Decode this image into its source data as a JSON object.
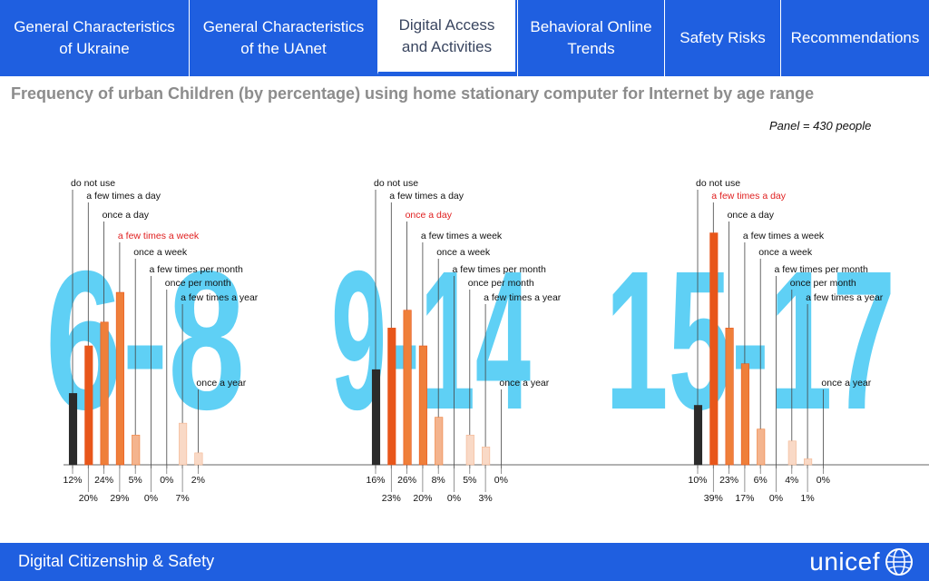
{
  "nav": {
    "tabs": [
      {
        "label_line1": "General Characteristics",
        "label_line2": "of Ukraine",
        "active": false
      },
      {
        "label_line1": "General Characteristics",
        "label_line2": "of the UAnet",
        "active": false
      },
      {
        "label_line1": "Digital Access",
        "label_line2": "and Activities",
        "active": true
      },
      {
        "label_line1": "Behavioral Online",
        "label_line2": "Trends",
        "active": false
      },
      {
        "label_line1": "Safety Risks",
        "label_line2": "",
        "active": false
      },
      {
        "label_line1": "Recommendations",
        "label_line2": "",
        "active": false
      }
    ]
  },
  "page": {
    "title": "Frequency of urban Children (by percentage) using home stationary computer for Internet by age range",
    "panel_note": "Panel = 430 people"
  },
  "chart_data": [
    {
      "type": "bar",
      "age_label": "6-8",
      "categories": [
        "do not use",
        "a few times a day",
        "once a day",
        "a few times a week",
        "once a week",
        "a few times per month",
        "once per month",
        "a few times a year",
        "once a year"
      ],
      "values": [
        12,
        20,
        24,
        29,
        5,
        0,
        0,
        7,
        2
      ],
      "value_labels": [
        "12%",
        "20%",
        "24%",
        "29%",
        "5%",
        "0%",
        "0%",
        "7%",
        "2%"
      ],
      "highlighted_category": "a few times a week"
    },
    {
      "type": "bar",
      "age_label": "9-14",
      "categories": [
        "do not use",
        "a few times a day",
        "once a day",
        "a few times a week",
        "once a week",
        "a few times per month",
        "once per month",
        "a few times a year",
        "once a year"
      ],
      "values": [
        16,
        23,
        26,
        20,
        8,
        0,
        5,
        3,
        0
      ],
      "value_labels": [
        "16%",
        "23%",
        "26%",
        "20%",
        "8%",
        "0%",
        "5%",
        "3%",
        "0%"
      ],
      "highlighted_category": "once a day"
    },
    {
      "type": "bar",
      "age_label": "15-17",
      "categories": [
        "do not use",
        "a few times a day",
        "once a day",
        "a few times a week",
        "once a week",
        "a few times per month",
        "once per month",
        "a few times a year",
        "once a year"
      ],
      "values": [
        10,
        39,
        23,
        17,
        6,
        0,
        4,
        1,
        0
      ],
      "value_labels": [
        "10%",
        "39%",
        "23%",
        "17%",
        "6%",
        "0%",
        "4%",
        "1%",
        "0%"
      ],
      "highlighted_category": "a few times a day"
    }
  ],
  "colors": {
    "nav_bg": "#1f5fe0",
    "age_label": "#5fd0f5",
    "highlight_text": "#e02020",
    "bar_do_not_use": "#2b2b2b",
    "bar_dark": "#e8561a",
    "bar_mid": "#ef7f3a",
    "bar_light": "#f4b48e",
    "bar_pale": "#f9d9c6"
  },
  "footer": {
    "text": "Digital Citizenship & Safety",
    "logo_text": "unicef"
  }
}
